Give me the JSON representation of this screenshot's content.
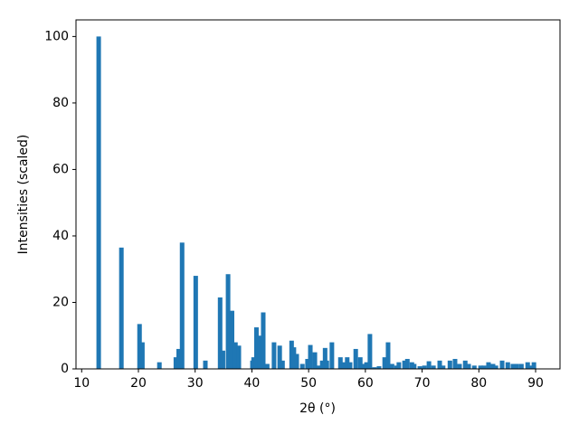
{
  "chart_data": {
    "type": "bar",
    "xlabel": "2θ (°)",
    "ylabel": "Intensities (scaled)",
    "color": "#1f77b4",
    "xlim": [
      9.0,
      94.3
    ],
    "ylim": [
      0,
      105
    ],
    "xticks": [
      10,
      20,
      30,
      40,
      50,
      60,
      70,
      80,
      90
    ],
    "yticks": [
      0,
      20,
      40,
      60,
      80,
      100
    ],
    "x": [
      13.0,
      17.0,
      20.2,
      20.7,
      23.7,
      26.6,
      27.1,
      27.7,
      30.1,
      31.8,
      34.4,
      34.9,
      35.8,
      36.5,
      37.1,
      37.7,
      40.1,
      40.3,
      40.8,
      41.4,
      42.0,
      42.7,
      43.9,
      44.9,
      45.4,
      47.0,
      47.4,
      47.9,
      48.9,
      49.8,
      50.3,
      51.1,
      51.8,
      52.4,
      52.9,
      53.2,
      54.1,
      55.6,
      56.2,
      56.8,
      57.3,
      58.3,
      59.1,
      59.7,
      60.2,
      60.8,
      61.6,
      62.4,
      63.4,
      64.0,
      64.7,
      65.5,
      65.9,
      66.9,
      67.4,
      68.2,
      68.6,
      69.6,
      70.4,
      71.2,
      72.0,
      73.1,
      73.7,
      74.9,
      75.8,
      76.6,
      77.6,
      78.2,
      79.2,
      80.3,
      80.9,
      81.7,
      82.5,
      83.0,
      84.1,
      85.1,
      86.0,
      86.7,
      87.5,
      88.6,
      89.0,
      89.7
    ],
    "values": [
      100,
      36.5,
      13.5,
      8,
      2,
      3.5,
      6,
      38,
      28,
      2.5,
      21.5,
      5.5,
      28.5,
      17.5,
      8,
      7,
      2.5,
      3.5,
      12.5,
      10,
      17,
      1.5,
      8,
      7,
      2.5,
      8.5,
      6.5,
      4.5,
      1.5,
      3,
      7.2,
      5,
      1,
      2.5,
      6.3,
      2.5,
      8,
      3.5,
      2,
      3.5,
      2,
      6,
      3.5,
      1.5,
      2,
      10.5,
      0.5,
      0.8,
      3.5,
      8,
      1.5,
      1,
      2,
      2.5,
      3,
      2,
      1.5,
      0.8,
      1,
      2.3,
      1,
      2.5,
      1,
      2.5,
      3,
      1.5,
      2.5,
      1.5,
      1,
      1,
      1,
      2,
      1.5,
      1,
      2.5,
      2,
      1.5,
      1.5,
      1.5,
      2,
      1,
      2
    ]
  }
}
